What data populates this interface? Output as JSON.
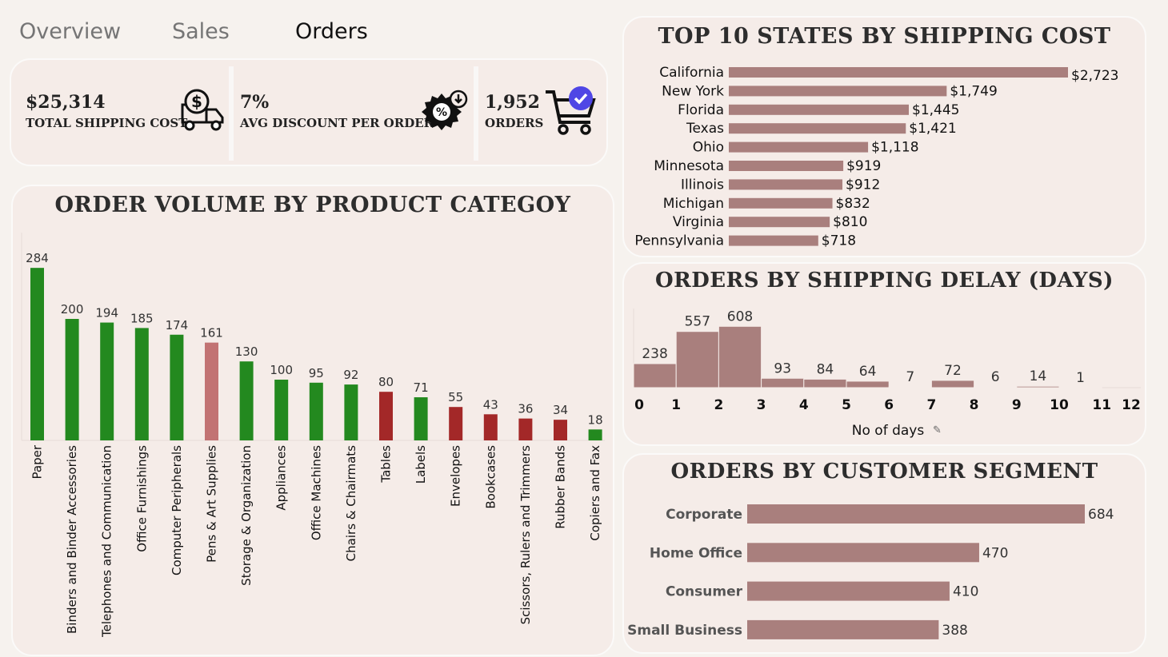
{
  "tabs": [
    {
      "label": "Overview",
      "active": false
    },
    {
      "label": "Sales",
      "active": false
    },
    {
      "label": "Orders",
      "active": true
    }
  ],
  "kpis": [
    {
      "value": "$25,314",
      "label": "TOTAL SHIPPING COST",
      "icon": "truck-dollar-icon"
    },
    {
      "value": "7%",
      "label": "AVG DISCOUNT PER ORDER",
      "icon": "discount-badge-icon"
    },
    {
      "value": "1,952",
      "label": "ORDERS",
      "icon": "shopping-cart-check-icon"
    }
  ],
  "colors": {
    "green": "#23891f",
    "red": "#a32828",
    "pink": "#c27373",
    "mauve": "#a97f7d"
  },
  "category_panel": {
    "title": "ORDER VOLUME BY PRODUCT CATEGOY"
  },
  "states_panel": {
    "title": "TOP 10 STATES BY SHIPPING COST"
  },
  "delay_panel": {
    "title": "ORDERS BY SHIPPING DELAY (DAYS)"
  },
  "segment_panel": {
    "title": "ORDERS BY CUSTOMER SEGMENT"
  },
  "chart_data": [
    {
      "id": "category",
      "type": "bar",
      "title": "ORDER VOLUME BY PRODUCT CATEGOY",
      "categories": [
        "Paper",
        "Binders and Binder Accessories",
        "Telephones and Communication",
        "Office Furnishings",
        "Computer Peripherals",
        "Pens & Art Supplies",
        "Storage & Organization",
        "Appliances",
        "Office Machines",
        "Chairs & Chairmats",
        "Tables",
        "Labels",
        "Envelopes",
        "Bookcases",
        "Scissors, Rulers and Trimmers",
        "Rubber Bands",
        "Copiers and Fax"
      ],
      "values": [
        284,
        200,
        194,
        185,
        174,
        161,
        130,
        100,
        95,
        92,
        80,
        71,
        55,
        43,
        36,
        34,
        18
      ],
      "bar_colors": [
        "green",
        "green",
        "green",
        "green",
        "green",
        "pink",
        "green",
        "green",
        "green",
        "green",
        "red",
        "green",
        "red",
        "red",
        "red",
        "red",
        "green"
      ],
      "ylim": [
        0,
        300
      ]
    },
    {
      "id": "states",
      "type": "bar",
      "orientation": "horizontal",
      "title": "TOP 10 STATES BY SHIPPING COST",
      "categories": [
        "California",
        "New York",
        "Florida",
        "Texas",
        "Ohio",
        "Minnesota",
        "Illinois",
        "Michigan",
        "Virginia",
        "Pennsylvania"
      ],
      "values": [
        2723,
        1749,
        1445,
        1421,
        1118,
        919,
        912,
        832,
        810,
        718
      ],
      "labels": [
        "$2,723",
        "$1,749",
        "$1,445",
        "$1,421",
        "$1,118",
        "$919",
        "$912",
        "$832",
        "$810",
        "$718"
      ]
    },
    {
      "id": "delay",
      "type": "bar",
      "title": "ORDERS BY SHIPPING DELAY (DAYS)",
      "xlabel": "No of days",
      "x_ticks": [
        "0",
        "1",
        "2",
        "3",
        "4",
        "5",
        "6",
        "7",
        "8",
        "9",
        "10",
        "11",
        "12"
      ],
      "bins": [
        [
          0,
          1
        ],
        [
          1,
          2
        ],
        [
          2,
          3
        ],
        [
          3,
          4
        ],
        [
          4,
          5
        ],
        [
          5,
          6
        ],
        [
          6,
          7
        ],
        [
          7,
          8
        ],
        [
          8,
          9
        ],
        [
          9,
          10
        ],
        [
          10,
          11
        ]
      ],
      "values": [
        238,
        557,
        608,
        93,
        84,
        64,
        7,
        72,
        6,
        14,
        1
      ],
      "ylim": [
        0,
        650
      ]
    },
    {
      "id": "segment",
      "type": "bar",
      "orientation": "horizontal",
      "title": "ORDERS BY CUSTOMER SEGMENT",
      "categories": [
        "Corporate",
        "Home Office",
        "Consumer",
        "Small Business"
      ],
      "values": [
        684,
        470,
        410,
        388
      ]
    }
  ]
}
